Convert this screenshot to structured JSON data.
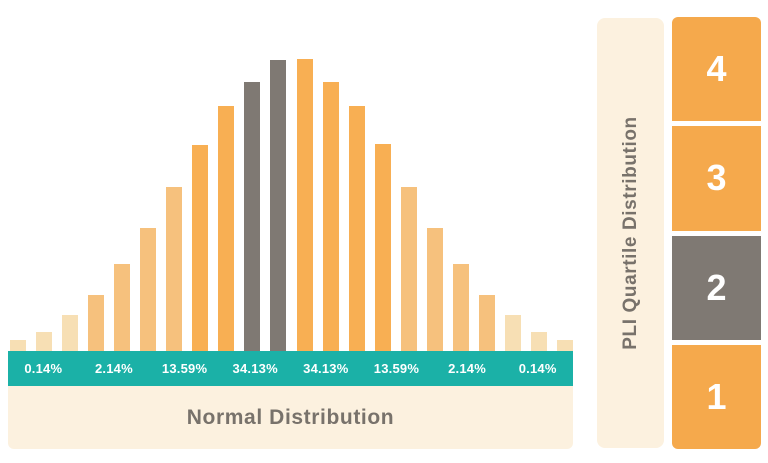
{
  "chart": {
    "caption": "Normal Distribution",
    "band_labels": [
      "0.14%",
      "2.14%",
      "13.59%",
      "34.13%",
      "34.13%",
      "13.59%",
      "2.14%",
      "0.14%"
    ]
  },
  "chart_data": {
    "type": "bar",
    "title": "Normal Distribution",
    "x": [
      1,
      2,
      3,
      4,
      5,
      6,
      7,
      8,
      9,
      10,
      11,
      12,
      13,
      14,
      15,
      16,
      17,
      18,
      19,
      20,
      21,
      22
    ],
    "values": [
      11,
      19,
      36,
      56,
      87,
      123,
      164,
      206,
      245,
      269,
      291,
      292,
      269,
      245,
      207,
      164,
      123,
      87,
      56,
      36,
      19,
      11
    ],
    "value_unit": "bar height in px (relative frequency of normal curve)",
    "bar_tiers": [
      "pale",
      "pale",
      "pale",
      "medium",
      "medium",
      "medium",
      "medium",
      "strong",
      "strong",
      "gray",
      "gray",
      "strong",
      "strong",
      "strong",
      "strong",
      "medium",
      "medium",
      "medium",
      "medium",
      "pale",
      "pale",
      "pale"
    ],
    "highlighted_gray_bars": [
      10,
      11
    ],
    "sigma_band_labels": [
      "0.14%",
      "2.14%",
      "13.59%",
      "34.13%",
      "34.13%",
      "13.59%",
      "2.14%",
      "0.14%"
    ],
    "xlabel": "",
    "ylabel": "",
    "grid": false,
    "legend": false
  },
  "panel": {
    "title": "PLI Quartile Distribution",
    "quartiles": [
      {
        "label": "4",
        "tier": "orange"
      },
      {
        "label": "3",
        "tier": "orange"
      },
      {
        "label": "2",
        "tier": "gray"
      },
      {
        "label": "1",
        "tier": "orange"
      }
    ]
  },
  "colors": {
    "pale": "#F7DFB4",
    "medium": "#F6C17D",
    "strong": "#F8AF53",
    "orange": "#F5A94C",
    "gray": "#7F7973",
    "teal": "#1BB1A7",
    "cream": "#FCF1DF",
    "text_gray": "#78726B",
    "white": "#FFFFFF"
  }
}
